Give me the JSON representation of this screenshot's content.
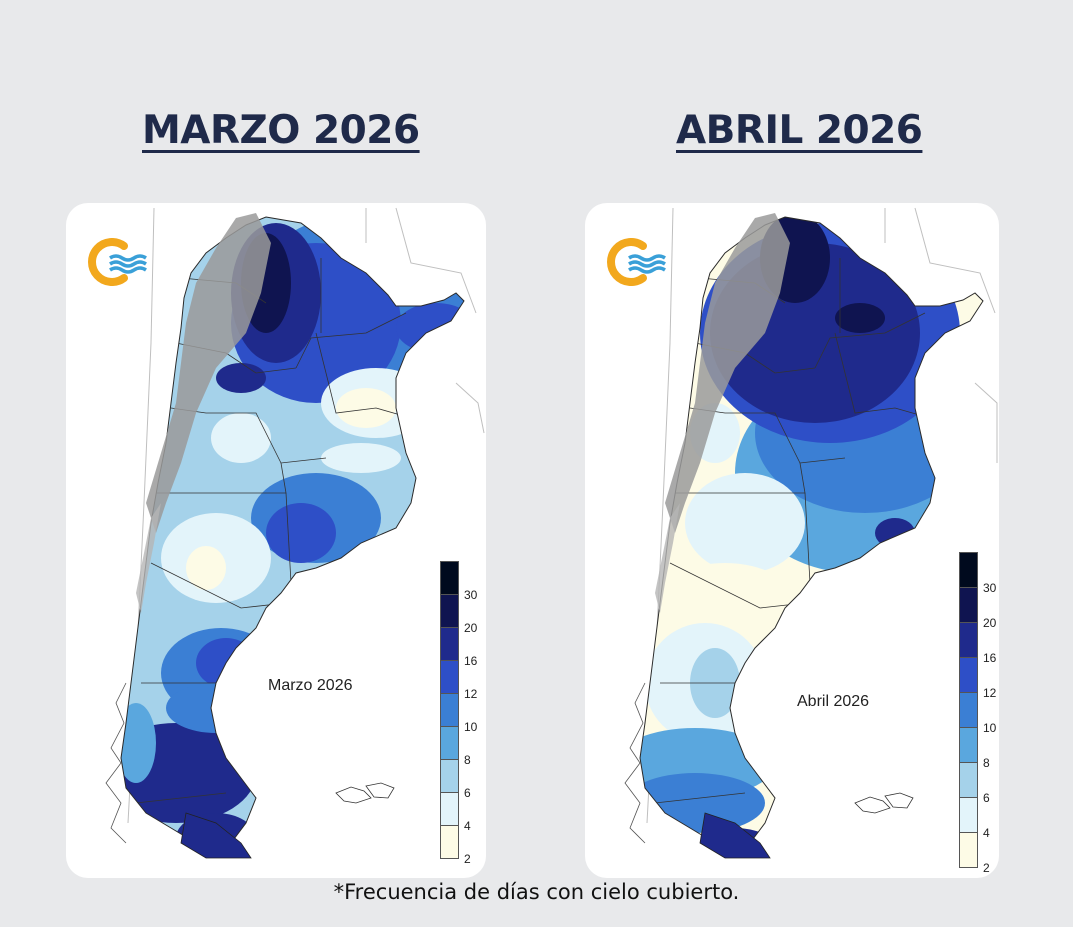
{
  "left_panel": {
    "heading": "MARZO 2026",
    "map_label": "Marzo 2026"
  },
  "right_panel": {
    "heading": "ABRIL 2026",
    "map_label": "Abril 2026"
  },
  "legend": {
    "ticks": [
      "30",
      "20",
      "16",
      "12",
      "10",
      "8",
      "6",
      "4",
      "2"
    ],
    "colors": [
      "#000a1e",
      "#0f1450",
      "#1f2a8c",
      "#2e4fc7",
      "#3b7fd4",
      "#5aa7de",
      "#a5d2ea",
      "#e3f4fa",
      "#fdfbe6"
    ]
  },
  "logo_icon": "smn-logo-icon",
  "colors": {
    "heading": "#1f2a4a",
    "background": "#e8e9eb",
    "andes_relief": "#9a9a9a"
  },
  "footnote": "*Frecuencia de días con cielo cubierto."
}
